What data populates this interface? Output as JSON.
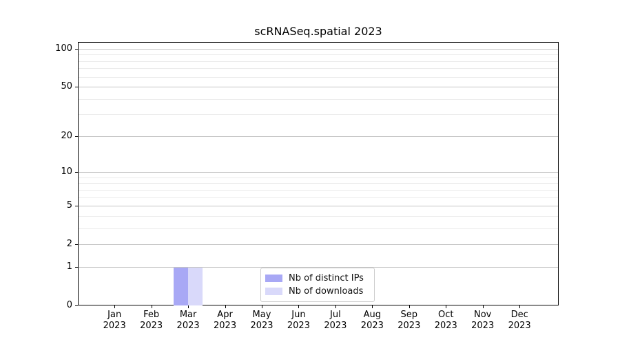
{
  "chart_data": {
    "type": "bar",
    "title": "scRNASeq.spatial 2023",
    "categories": [
      "Jan",
      "Feb",
      "Mar",
      "Apr",
      "May",
      "Jun",
      "Jul",
      "Aug",
      "Sep",
      "Oct",
      "Nov",
      "Dec"
    ],
    "x_year_label": "2023",
    "series": [
      {
        "name": "Nb of distinct IPs",
        "color": "#a8a8f5",
        "values": [
          0,
          0,
          1,
          0,
          0,
          0,
          0,
          0,
          0,
          0,
          0,
          0
        ]
      },
      {
        "name": "Nb of downloads",
        "color": "#d9d9fa",
        "values": [
          0,
          0,
          1,
          0,
          0,
          0,
          0,
          0,
          0,
          0,
          0,
          0
        ]
      }
    ],
    "y_axis": {
      "scale": "log1p",
      "tick_values": [
        0,
        1,
        2,
        5,
        10,
        20,
        50,
        100
      ],
      "tick_labels": [
        "0",
        "1",
        "2",
        "5",
        "10",
        "20",
        "50",
        "100"
      ],
      "minor_values": [
        3,
        4,
        6,
        7,
        8,
        9,
        30,
        40,
        60,
        70,
        80,
        90
      ],
      "max": 113
    },
    "grid": "both",
    "legend_position": "lower center"
  },
  "style": {
    "major_grid_color": "#c3c3c3",
    "minor_grid_color": "#ebebeb",
    "spine_color": "#000000",
    "text_color": "#000000",
    "background": "#ffffff"
  }
}
